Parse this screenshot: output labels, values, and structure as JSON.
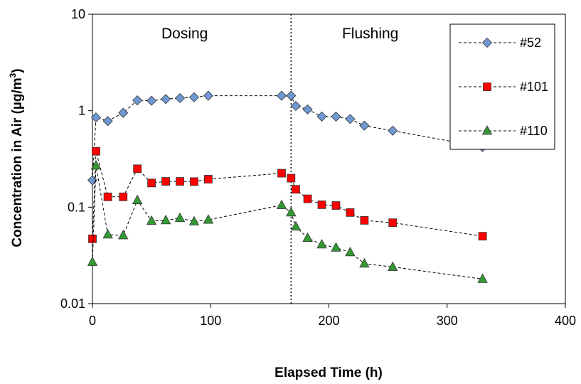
{
  "chart_data": {
    "type": "line",
    "xlabel": "Elapsed Time (h)",
    "ylabel": "Concentration in Air  (µg/m³)",
    "ylabel_main": "Concentration in Air  (µg/m",
    "ylabel_sup": "3",
    "ylabel_end": ")",
    "xlim": [
      0,
      400
    ],
    "ylim": [
      0.01,
      10
    ],
    "yscale": "log",
    "x_ticks": [
      0,
      100,
      200,
      300,
      400
    ],
    "x_tick_labels": [
      "0",
      "100",
      "200",
      "300",
      "400"
    ],
    "y_ticks": [
      0.01,
      0.1,
      1,
      10
    ],
    "y_tick_labels": [
      "0.01",
      "0.1",
      "1",
      "10"
    ],
    "grid": false,
    "legend_position": "top-right",
    "annotations": [
      {
        "text": "Dosing",
        "x": 78,
        "y": 6.3
      },
      {
        "text": "Flushing",
        "x": 235,
        "y": 6.3
      }
    ],
    "vline": {
      "x": 168,
      "style": "dotted"
    },
    "series": [
      {
        "name": "#52",
        "marker": "diamond",
        "color": "#6F98D3",
        "x": [
          0,
          3,
          13,
          26,
          38,
          50,
          62,
          74,
          86,
          98,
          160,
          168,
          172,
          182,
          194,
          206,
          218,
          230,
          254,
          330
        ],
        "y": [
          0.19,
          0.85,
          0.78,
          0.95,
          1.28,
          1.27,
          1.32,
          1.35,
          1.38,
          1.43,
          1.43,
          1.43,
          1.12,
          1.03,
          0.87,
          0.87,
          0.82,
          0.7,
          0.62,
          0.42
        ]
      },
      {
        "name": "#101",
        "marker": "square",
        "color": "#FF0000",
        "x": [
          0,
          3,
          13,
          26,
          38,
          50,
          62,
          74,
          86,
          98,
          160,
          168,
          172,
          182,
          194,
          206,
          218,
          230,
          254,
          330
        ],
        "y": [
          0.047,
          0.38,
          0.128,
          0.128,
          0.25,
          0.178,
          0.185,
          0.185,
          0.184,
          0.195,
          0.225,
          0.2,
          0.153,
          0.122,
          0.106,
          0.104,
          0.088,
          0.073,
          0.069,
          0.05
        ]
      },
      {
        "name": "#110",
        "marker": "triangle",
        "color": "#339933",
        "x": [
          0,
          3,
          13,
          26,
          38,
          50,
          62,
          74,
          86,
          98,
          160,
          168,
          172,
          182,
          194,
          206,
          218,
          230,
          254,
          330
        ],
        "y": [
          0.027,
          0.27,
          0.052,
          0.051,
          0.118,
          0.072,
          0.073,
          0.077,
          0.071,
          0.074,
          0.105,
          0.088,
          0.063,
          0.048,
          0.041,
          0.038,
          0.034,
          0.026,
          0.024,
          0.018
        ]
      }
    ]
  }
}
